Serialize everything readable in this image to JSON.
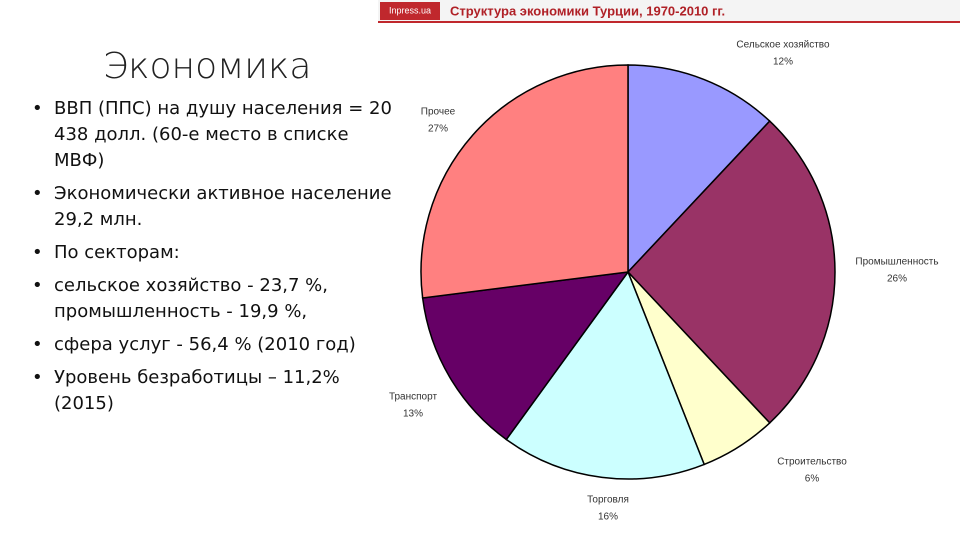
{
  "slide": {
    "title": "Экономика",
    "bullets": [
      "ВВП (ППС)  на душу населения = 20 438 долл. (60-е место в списке МВФ)",
      "Экономически активное население 29,2 млн.",
      "По секторам:",
      "сельское хозяйство - 23,7 %, промышленность - 19,9 %,",
      "сфера услуг - 56,4 % (2010 год)",
      "Уровень безработицы – 11,2% (2015)"
    ]
  },
  "chart_data": {
    "type": "pie",
    "source": "Inpress.ua",
    "title": "Структура экономики Турции, 1970-2010 гг.",
    "categories": [
      "Сельское хозяйство",
      "Промышленность",
      "Строительство",
      "Торговля",
      "Транспорт",
      "Прочее"
    ],
    "values": [
      12,
      26,
      6,
      16,
      13,
      27
    ],
    "value_labels": [
      "12%",
      "26%",
      "6%",
      "16%",
      "13%",
      "27%"
    ],
    "colors": [
      "#9999ff",
      "#993366",
      "#ffffcc",
      "#ccffff",
      "#660066",
      "#ff8080"
    ]
  }
}
